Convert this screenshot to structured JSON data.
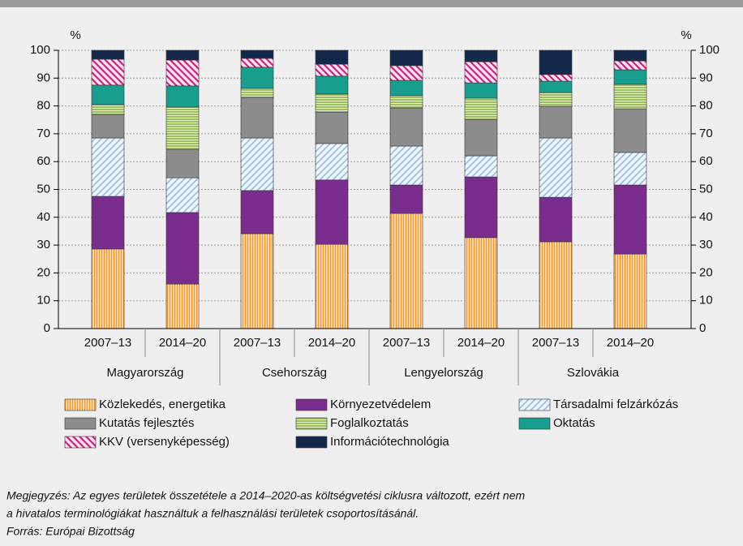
{
  "chart_data": {
    "type": "stacked_bar",
    "y_label": "%",
    "y2_label": "%",
    "categories": [
      "2007–13",
      "2014–20",
      "2007–13",
      "2014–20",
      "2007–13",
      "2014–20",
      "2007–13",
      "2014–20"
    ],
    "groups": [
      "Magyarország",
      "Csehország",
      "Lengyelország",
      "Szlovákia"
    ],
    "ylim": [
      0,
      100
    ],
    "yticks": [
      0,
      10,
      20,
      30,
      40,
      50,
      60,
      70,
      80,
      90,
      100
    ],
    "y2lim": [
      0,
      100
    ],
    "y2ticks": [
      0,
      10,
      20,
      30,
      40,
      50,
      60,
      70,
      80,
      90,
      100
    ],
    "grid": true,
    "series": [
      {
        "name": "Közlekedés, energetika",
        "color": "#f7941d",
        "hatch": "vertical",
        "values": [
          28.6,
          16,
          34.1,
          30.3,
          41.4,
          32.7,
          31.2,
          26.8
        ]
      },
      {
        "name": "Környezetvédelem",
        "color": "#7b2d8e",
        "hatch": "none",
        "values": [
          18.9,
          25.7,
          15.5,
          23.1,
          10.2,
          21.8,
          16,
          24.8
        ]
      },
      {
        "name": "Társadalmi felzárkózás",
        "color": "#8fb8e0",
        "hatch": "diagonal",
        "values": [
          21,
          12.5,
          18.9,
          13.1,
          14,
          7.6,
          21.3,
          11.7
        ]
      },
      {
        "name": "Kutatás fejlesztés",
        "color": "#8c8c8c",
        "hatch": "none",
        "values": [
          8.5,
          10.2,
          14.6,
          11.3,
          13.7,
          13.1,
          11.4,
          15.7
        ]
      },
      {
        "name": "Foglalkoztatás",
        "color": "#8db346",
        "hatch": "horizontal",
        "values": [
          3.5,
          15.2,
          3.2,
          6.5,
          4.4,
          7.6,
          4.9,
          8.8
        ]
      },
      {
        "name": "Oktatás",
        "color": "#179e8e",
        "hatch": "none",
        "values": [
          7,
          7.6,
          7.6,
          6.4,
          5.5,
          5.5,
          4.1,
          5.2
        ]
      },
      {
        "name": "KKV (versenyképesség)",
        "color": "#e5177e",
        "hatch": "diagonal-back",
        "values": [
          9.3,
          9.3,
          3.2,
          4.3,
          5.3,
          7.6,
          2.4,
          3.2
        ]
      },
      {
        "name": "Információtechnológia",
        "color": "#14284b",
        "hatch": "none",
        "values": [
          3.2,
          3.5,
          2.9,
          5,
          5.5,
          4.1,
          8.7,
          3.8
        ]
      }
    ],
    "notes": [
      "Megjegyzés: Az egyes területek összetétele a 2014–2020-as költségvetési ciklusra változott, ezért nem",
      "a hivatalos terminológiákat használtuk a felhasználási területek csoportosításánál.",
      "Forrás: Európai Bizottság"
    ]
  }
}
